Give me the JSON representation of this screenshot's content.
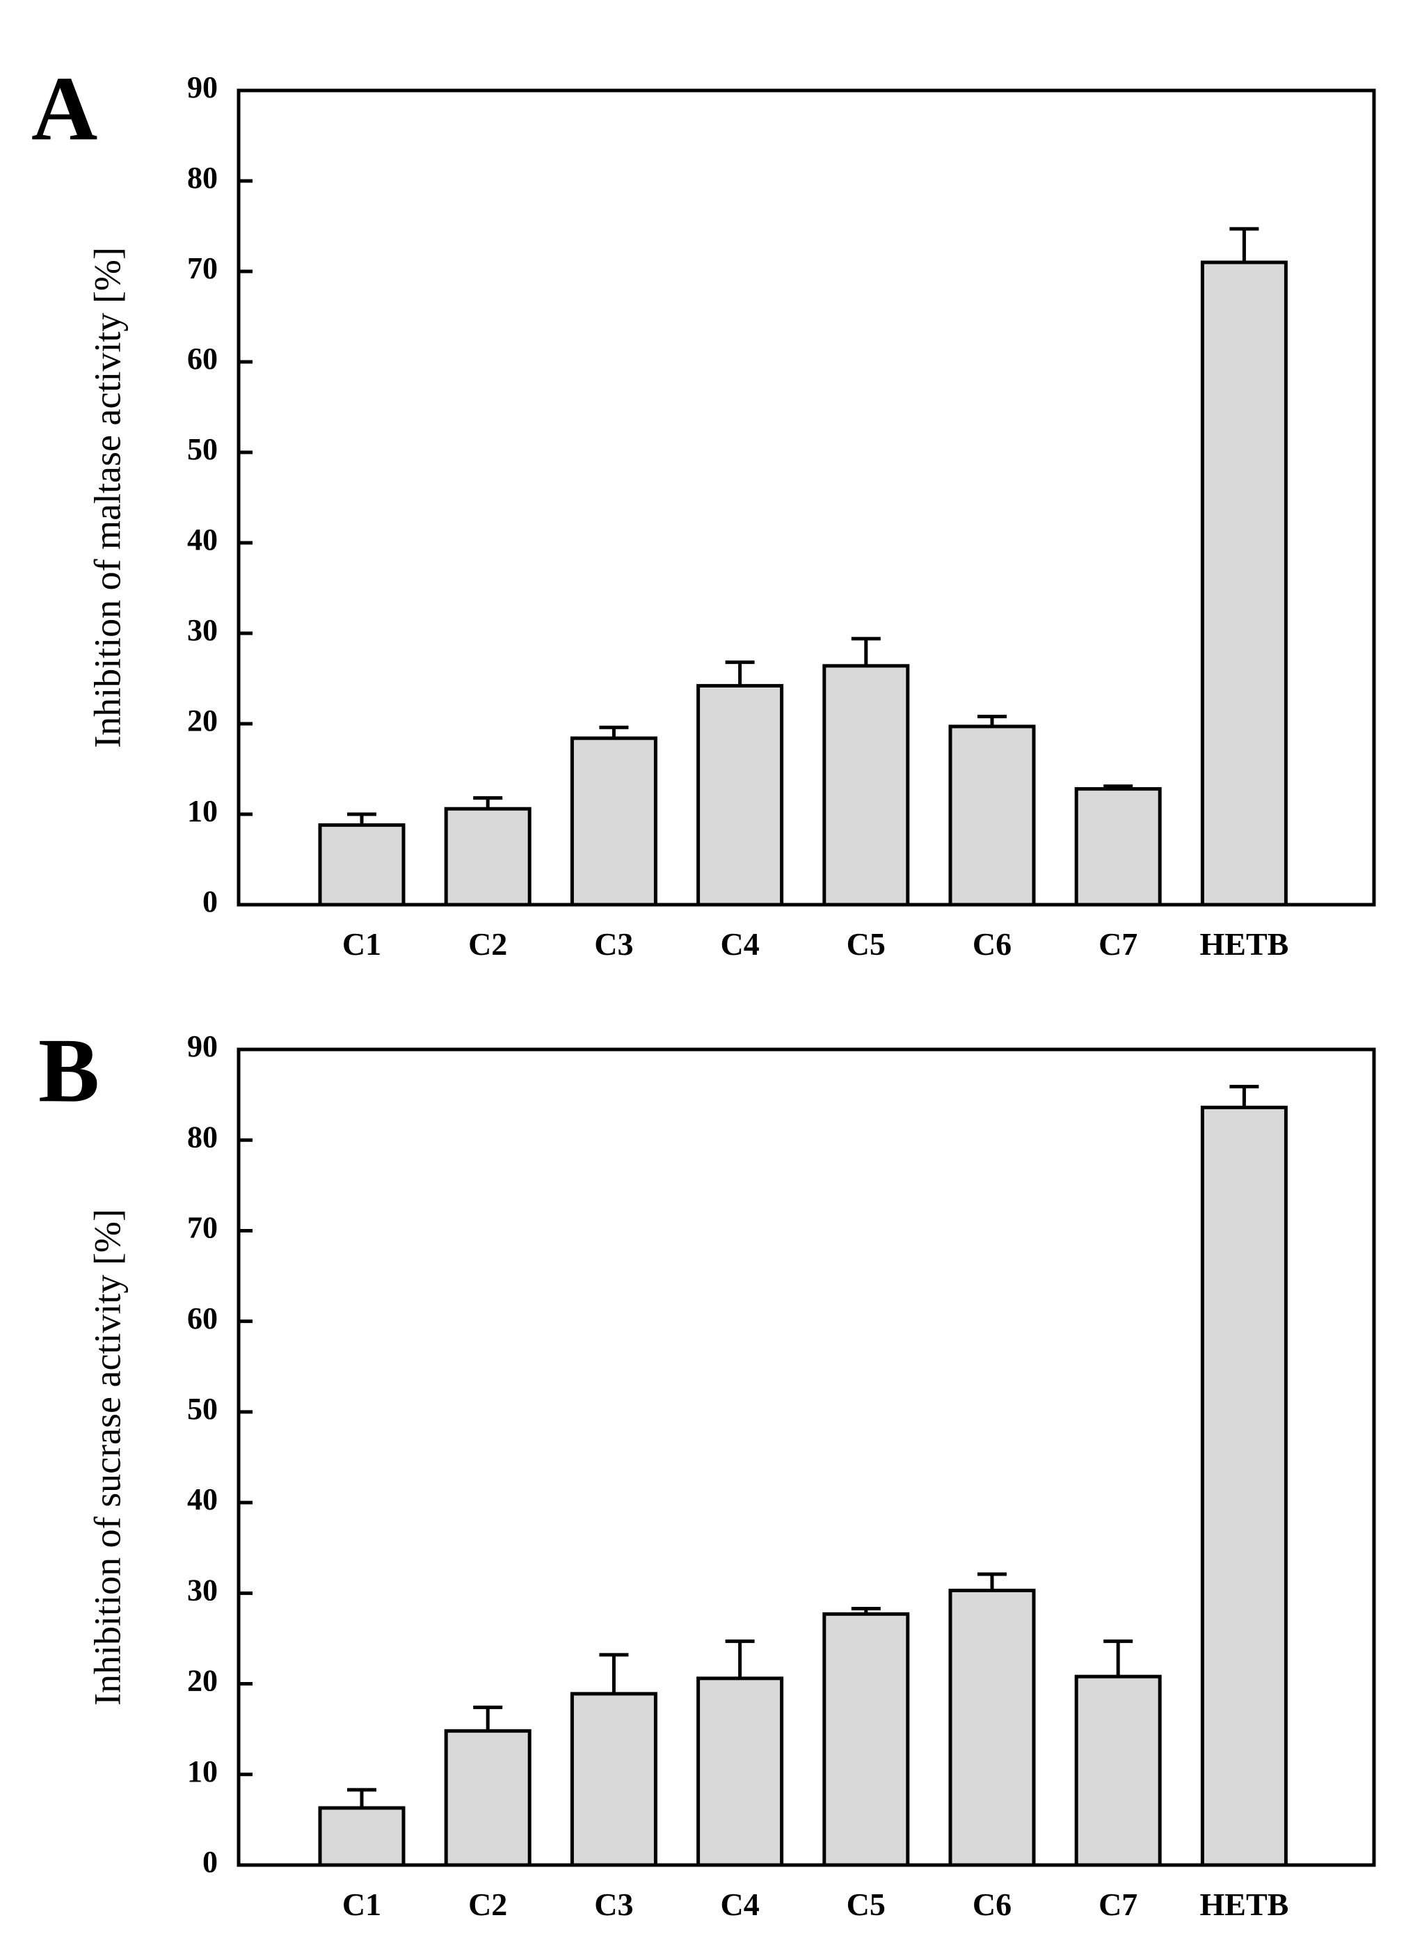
{
  "colors": {
    "bar_fill": "#d9d9d9",
    "stroke": "#000000",
    "background": "#ffffff"
  },
  "chart_data": [
    {
      "type": "bar",
      "panel_label": "A",
      "title": "",
      "xlabel": "",
      "ylabel": "Inhibition of maltase activity [%]",
      "ylim": [
        0,
        90
      ],
      "yticks": [
        0,
        10,
        20,
        30,
        40,
        50,
        60,
        70,
        80,
        90
      ],
      "categories": [
        "C1",
        "C2",
        "C3",
        "C4",
        "C5",
        "C6",
        "C7",
        "HETB"
      ],
      "values": [
        8.8,
        10.6,
        18.4,
        24.2,
        26.4,
        19.7,
        12.8,
        71.0
      ],
      "errors": [
        1.2,
        1.2,
        1.2,
        2.6,
        3.0,
        1.1,
        0.3,
        3.7
      ],
      "grid": false,
      "legend": "none"
    },
    {
      "type": "bar",
      "panel_label": "B",
      "title": "",
      "xlabel": "",
      "ylabel": "Inhibition of sucrase activity [%]",
      "ylim": [
        0,
        90
      ],
      "yticks": [
        0,
        10,
        20,
        30,
        40,
        50,
        60,
        70,
        80,
        90
      ],
      "categories": [
        "C1",
        "C2",
        "C3",
        "C4",
        "C5",
        "C6",
        "C7",
        "HETB"
      ],
      "values": [
        6.3,
        14.8,
        18.9,
        20.6,
        27.7,
        30.3,
        20.8,
        83.6
      ],
      "errors": [
        2.0,
        2.6,
        4.3,
        4.1,
        0.6,
        1.8,
        3.9,
        2.3
      ],
      "grid": false,
      "legend": "none"
    }
  ]
}
